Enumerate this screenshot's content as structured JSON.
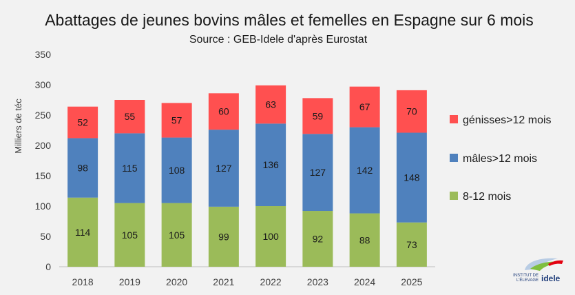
{
  "chart_data": {
    "type": "bar",
    "stacked": true,
    "title": "Abattages de jeunes bovins mâles et femelles en Espagne sur 6 mois",
    "subtitle": "Source : GEB-Idele d'après Eurostat",
    "ylabel": "Milliers de téc",
    "xlabel": "",
    "ylim": [
      0,
      350
    ],
    "yticks": [
      0,
      50,
      100,
      150,
      200,
      250,
      300,
      350
    ],
    "grid": false,
    "legend_position": "right",
    "categories": [
      "2018",
      "2019",
      "2020",
      "2021",
      "2022",
      "2023",
      "2024",
      "2025"
    ],
    "series": [
      {
        "name": "8-12 mois",
        "color": "#9bbb59",
        "values": [
          114,
          105,
          105,
          99,
          100,
          92,
          88,
          73
        ]
      },
      {
        "name": "mâles>12 mois",
        "color": "#4f81bd",
        "values": [
          98,
          115,
          108,
          127,
          136,
          127,
          142,
          148
        ]
      },
      {
        "name": "génisses>12 mois",
        "color": "#ff5050",
        "values": [
          52,
          55,
          57,
          60,
          63,
          59,
          67,
          70
        ]
      }
    ]
  },
  "logo": {
    "icon": "idele-logo",
    "line1": "INSTITUT DE",
    "line2": "L'ÉLEVAGE",
    "brand": "idele"
  }
}
